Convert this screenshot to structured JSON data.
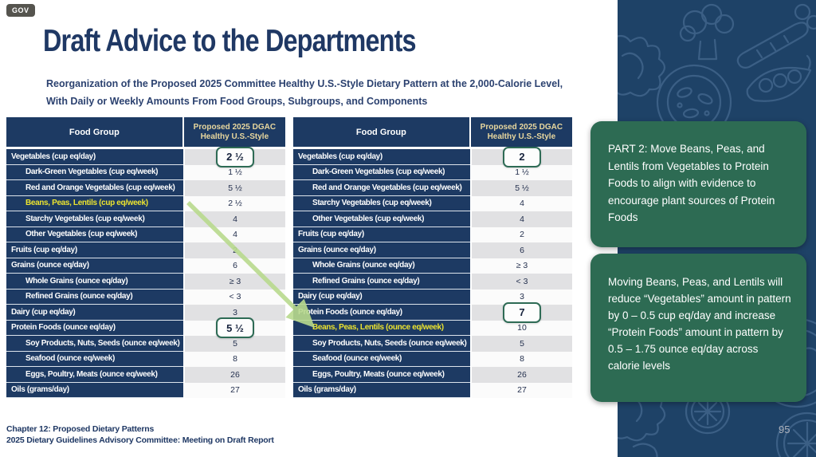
{
  "badge": "GOV",
  "title": "Draft Advice to the Departments",
  "subtitle_line1": "Reorganization of the Proposed 2025 Committee Healthy U.S.-Style Dietary Pattern at the 2,000-Calorie Level,",
  "subtitle_line2": "With Daily or Weekly Amounts From Food Groups, Subgroups, and Components",
  "tables": [
    {
      "name": "pattern-before-move",
      "header": {
        "food_group": "Food Group",
        "value_line1": "Proposed 2025 DGAC",
        "value_line2": "Healthy U.S.-Style"
      },
      "rows": [
        {
          "label": "Vegetables (cup eq/day)",
          "value": "2 ½",
          "indent": false,
          "highlight_label": false,
          "boxed": true
        },
        {
          "label": "Dark-Green Vegetables (cup eq/week)",
          "value": "1 ½",
          "indent": true,
          "highlight_label": false,
          "boxed": false
        },
        {
          "label": "Red and Orange Vegetables (cup eq/week)",
          "value": "5 ½",
          "indent": true,
          "highlight_label": false,
          "boxed": false
        },
        {
          "label": "Beans, Peas, Lentils (cup eq/week)",
          "value": "2 ½",
          "indent": true,
          "highlight_label": true,
          "boxed": false
        },
        {
          "label": "Starchy Vegetables (cup eq/week)",
          "value": "4",
          "indent": true,
          "highlight_label": false,
          "boxed": false
        },
        {
          "label": "Other Vegetables (cup eq/week)",
          "value": "4",
          "indent": true,
          "highlight_label": false,
          "boxed": false
        },
        {
          "label": "Fruits (cup eq/day)",
          "value": "2",
          "indent": false,
          "highlight_label": false,
          "boxed": false
        },
        {
          "label": "Grains (ounce eq/day)",
          "value": "6",
          "indent": false,
          "highlight_label": false,
          "boxed": false
        },
        {
          "label": "Whole Grains (ounce eq/day)",
          "value": "≥ 3",
          "indent": true,
          "highlight_label": false,
          "boxed": false
        },
        {
          "label": "Refined Grains (ounce eq/day)",
          "value": "< 3",
          "indent": true,
          "highlight_label": false,
          "boxed": false
        },
        {
          "label": "Dairy (cup eq/day)",
          "value": "3",
          "indent": false,
          "highlight_label": false,
          "boxed": false
        },
        {
          "label": "Protein Foods (ounce eq/day)",
          "value": "5 ½",
          "indent": false,
          "highlight_label": false,
          "boxed": true
        },
        {
          "label": "Soy Products, Nuts, Seeds (ounce eq/week)",
          "value": "5",
          "indent": true,
          "highlight_label": false,
          "boxed": false
        },
        {
          "label": "Seafood (ounce eq/week)",
          "value": "8",
          "indent": true,
          "highlight_label": false,
          "boxed": false
        },
        {
          "label": "Eggs, Poultry, Meats (ounce eq/week)",
          "value": "26",
          "indent": true,
          "highlight_label": false,
          "boxed": false
        },
        {
          "label": "Oils (grams/day)",
          "value": "27",
          "indent": false,
          "highlight_label": false,
          "boxed": false
        }
      ]
    },
    {
      "name": "pattern-after-move",
      "header": {
        "food_group": "Food Group",
        "value_line1": "Proposed 2025 DGAC",
        "value_line2": "Healthy U.S.-Style"
      },
      "rows": [
        {
          "label": "Vegetables (cup eq/day)",
          "value": "2",
          "indent": false,
          "highlight_label": false,
          "boxed": true
        },
        {
          "label": "Dark-Green Vegetables (cup eq/week)",
          "value": "1 ½",
          "indent": true,
          "highlight_label": false,
          "boxed": false
        },
        {
          "label": "Red and Orange Vegetables (cup eq/week)",
          "value": "5 ½",
          "indent": true,
          "highlight_label": false,
          "boxed": false
        },
        {
          "label": "Starchy Vegetables (cup eq/week)",
          "value": "4",
          "indent": true,
          "highlight_label": false,
          "boxed": false
        },
        {
          "label": "Other Vegetables (cup eq/week)",
          "value": "4",
          "indent": true,
          "highlight_label": false,
          "boxed": false
        },
        {
          "label": "Fruits (cup eq/day)",
          "value": "2",
          "indent": false,
          "highlight_label": false,
          "boxed": false
        },
        {
          "label": "Grains (ounce eq/day)",
          "value": "6",
          "indent": false,
          "highlight_label": false,
          "boxed": false
        },
        {
          "label": "Whole Grains (ounce eq/day)",
          "value": "≥ 3",
          "indent": true,
          "highlight_label": false,
          "boxed": false
        },
        {
          "label": "Refined Grains (ounce eq/day)",
          "value": "< 3",
          "indent": true,
          "highlight_label": false,
          "boxed": false
        },
        {
          "label": "Dairy (cup eq/day)",
          "value": "3",
          "indent": false,
          "highlight_label": false,
          "boxed": false
        },
        {
          "label": "Protein Foods (ounce eq/day)",
          "value": "7",
          "indent": false,
          "highlight_label": false,
          "boxed": true
        },
        {
          "label": "Beans, Peas, Lentils (ounce eq/week)",
          "value": "10",
          "indent": true,
          "highlight_label": true,
          "boxed": false
        },
        {
          "label": "Soy Products, Nuts, Seeds (ounce eq/week)",
          "value": "5",
          "indent": true,
          "highlight_label": false,
          "boxed": false
        },
        {
          "label": "Seafood (ounce eq/week)",
          "value": "8",
          "indent": true,
          "highlight_label": false,
          "boxed": false
        },
        {
          "label": "Eggs, Poultry, Meats (ounce eq/week)",
          "value": "26",
          "indent": true,
          "highlight_label": false,
          "boxed": false
        },
        {
          "label": "Oils (grams/day)",
          "value": "27",
          "indent": false,
          "highlight_label": false,
          "boxed": false
        }
      ]
    }
  ],
  "callouts": [
    {
      "text": "PART 2: Move Beans, Peas, and Lentils from Vegetables to Protein Foods to align with evidence to encourage plant sources of Protein Foods"
    },
    {
      "text": "Moving Beans, Peas, and Lentils will reduce “Vegetables” amount in pattern by 0 – 0.5 cup eq/day and increase “Protein Foods” amount in pattern by 0.5 – 1.75 ounce eq/day across calorie levels"
    }
  ],
  "footer": {
    "line1": "Chapter 12: Proposed Dietary Patterns",
    "line2": "2025 Dietary Guidelines Advisory Committee: Meeting on Draft Report"
  },
  "page_number": "95",
  "sidebar_icons": [
    "lettuce-icon",
    "broccoli-icon",
    "carrot-icon",
    "pea-pod-icon",
    "plate-icon",
    "citrus-slice-icon"
  ],
  "colors": {
    "navy_table": "#1d3a63",
    "navy_sidebar": "#1e4267",
    "title_navy": "#1f3864",
    "green_callout": "#2d6b53",
    "green_accent": "#2e6b55",
    "yellow_label": "#ece42f",
    "gold_header": "#e8d79e",
    "arrow_green": "#b9da8e",
    "stripe_gray": "#e1e1e3",
    "page_num_gray": "#adb2bc",
    "badge_gray": "#55544e"
  }
}
